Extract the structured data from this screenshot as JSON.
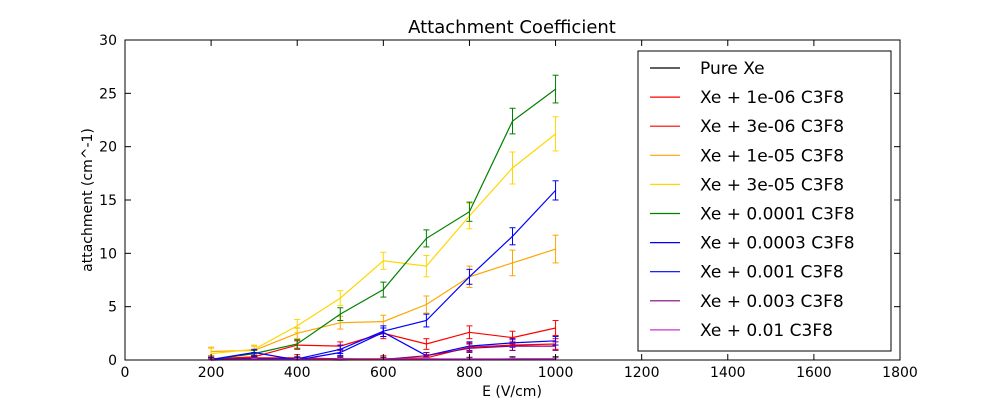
{
  "chart_data": {
    "type": "line",
    "title": "Attachment Coefficient",
    "xlabel": "E (V/cm)",
    "ylabel": "attachment (cm^-1)",
    "xlim": [
      0,
      1800
    ],
    "ylim": [
      0,
      30
    ],
    "xticks": [
      0,
      200,
      400,
      600,
      800,
      1000,
      1200,
      1400,
      1600,
      1800
    ],
    "yticks": [
      0,
      5,
      10,
      15,
      20,
      25,
      30
    ],
    "grid": false,
    "legend_position": "top-right",
    "x": [
      200,
      300,
      400,
      500,
      600,
      700,
      800,
      900,
      1000
    ],
    "series": [
      {
        "name": "Pure Xe",
        "color": "#000000",
        "values": [
          0,
          0.1,
          0.05,
          0,
          0.05,
          0.1,
          0.05,
          0.1,
          0.1
        ],
        "errors": [
          0.2,
          0.3,
          0.2,
          0.2,
          0.2,
          0.2,
          0.2,
          0.2,
          0.2
        ]
      },
      {
        "name": "Xe + 1e-06 C3F8",
        "color": "#ff0000",
        "values": [
          0.1,
          0.2,
          0.2,
          0.1,
          0.1,
          0.2,
          1.2,
          1.4,
          1.5
        ],
        "errors": [
          0.3,
          0.3,
          0.3,
          0.3,
          0.3,
          0.3,
          0.4,
          0.5,
          0.5
        ]
      },
      {
        "name": "Xe + 3e-06 C3F8",
        "color": "#ff0000",
        "values": [
          0.1,
          0.3,
          1.4,
          1.3,
          2.5,
          1.5,
          2.6,
          2.1,
          3.0
        ],
        "errors": [
          0.3,
          0.4,
          0.4,
          0.4,
          0.5,
          0.5,
          0.6,
          0.6,
          0.7
        ]
      },
      {
        "name": "Xe + 1e-05 C3F8",
        "color": "#ffa500",
        "values": [
          0.8,
          0.9,
          2.5,
          3.5,
          3.6,
          5.2,
          7.8,
          9.1,
          10.4
        ],
        "errors": [
          0.4,
          0.4,
          0.5,
          0.6,
          0.6,
          0.8,
          1.0,
          1.2,
          1.3
        ]
      },
      {
        "name": "Xe + 3e-05 C3F8",
        "color": "#ffd700",
        "values": [
          0.6,
          1.0,
          3.2,
          5.8,
          9.3,
          8.8,
          13.5,
          18.0,
          21.2
        ],
        "errors": [
          0.5,
          0.4,
          0.6,
          0.7,
          0.8,
          1.0,
          1.2,
          1.5,
          1.6
        ]
      },
      {
        "name": "Xe + 0.0001 C3F8",
        "color": "#008000",
        "values": [
          0.05,
          0.6,
          1.5,
          4.3,
          6.6,
          11.4,
          13.9,
          22.4,
          25.4
        ],
        "errors": [
          0.2,
          0.3,
          0.4,
          0.6,
          0.7,
          0.8,
          0.9,
          1.2,
          1.3
        ]
      },
      {
        "name": "Xe + 0.0003 C3F8",
        "color": "#0000ff",
        "values": [
          0.05,
          0.1,
          0.1,
          1.0,
          2.7,
          3.7,
          7.8,
          11.6,
          15.9
        ],
        "errors": [
          0.2,
          0.2,
          0.2,
          0.4,
          0.5,
          0.6,
          0.7,
          0.8,
          0.9
        ]
      },
      {
        "name": "Xe + 0.001 C3F8",
        "color": "#0000ff",
        "values": [
          0.05,
          0.7,
          0.0,
          0.7,
          2.6,
          0.4,
          1.3,
          1.6,
          1.8
        ],
        "errors": [
          0.2,
          0.3,
          0.2,
          0.3,
          0.4,
          0.3,
          0.4,
          0.4,
          0.4
        ]
      },
      {
        "name": "Xe + 0.003 C3F8",
        "color": "#800080",
        "values": [
          0.0,
          0.05,
          0.05,
          0.1,
          0.05,
          0.4,
          1.1,
          1.3,
          1.3
        ],
        "errors": [
          0.2,
          0.2,
          0.2,
          0.2,
          0.2,
          0.3,
          0.4,
          0.4,
          0.4
        ]
      },
      {
        "name": "Xe + 0.01 C3F8",
        "color": "#cc33cc",
        "values": [
          0.0,
          0.05,
          0.05,
          0.05,
          0.05,
          0.1,
          0.1,
          0.1,
          0.1
        ],
        "errors": [
          0.1,
          0.1,
          0.1,
          0.1,
          0.1,
          0.1,
          0.1,
          0.1,
          0.1
        ]
      }
    ]
  }
}
